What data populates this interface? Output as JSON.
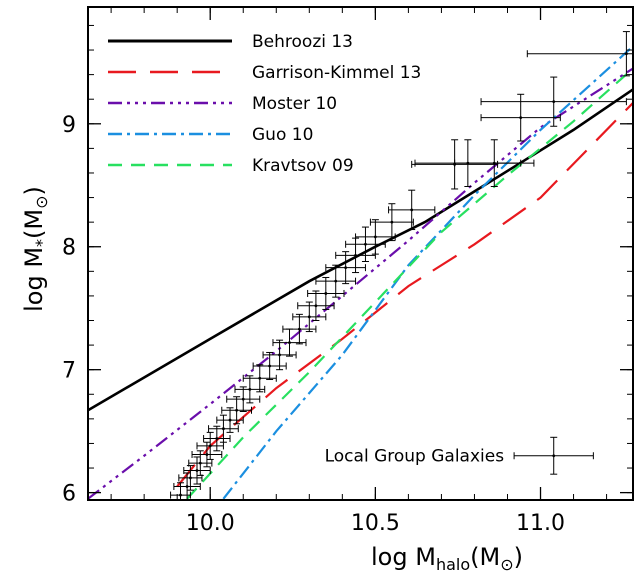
{
  "chart_data": {
    "type": "line",
    "title": "",
    "xlabel": {
      "main": "log M",
      "sub": "halo",
      "unit": "(M",
      "unit_sub": "⊙",
      "close": ")"
    },
    "ylabel": {
      "main": "log M",
      "sub": "*",
      "unit": "(M",
      "unit_sub": "⊙",
      "close": ")"
    },
    "xlim": [
      9.63,
      11.28
    ],
    "ylim": [
      5.94,
      9.95
    ],
    "xticks": [
      10.0,
      10.5,
      11.0
    ],
    "xtick_labels": [
      "10.0",
      "10.5",
      "11.0"
    ],
    "yticks": [
      6,
      7,
      8,
      9
    ],
    "ytick_labels": [
      "6",
      "7",
      "8",
      "9"
    ],
    "legend_position": "top-left",
    "series": [
      {
        "name": "Behroozi 13",
        "color": "#000000",
        "dash": "solid",
        "width": 2.6,
        "x": [
          9.63,
          10.0,
          10.3,
          10.5,
          10.65,
          10.8,
          10.95,
          11.1,
          11.28
        ],
        "y": [
          6.67,
          7.25,
          7.72,
          8.0,
          8.2,
          8.45,
          8.7,
          8.95,
          9.28
        ]
      },
      {
        "name": "Garrison-Kimmel 13",
        "color": "#e8191f",
        "dash": "28,14",
        "width": 2.2,
        "x": [
          9.9,
          10.0,
          10.2,
          10.4,
          10.6,
          10.8,
          11.0,
          11.28
        ],
        "y": [
          6.05,
          6.38,
          6.85,
          7.25,
          7.68,
          8.02,
          8.4,
          9.17
        ]
      },
      {
        "name": "Moster 10",
        "color": "#6a0eab",
        "dash": "14,5,3,5,3,5,3,5",
        "width": 2.2,
        "x": [
          9.63,
          9.8,
          10.0,
          10.2,
          10.4,
          10.6,
          10.8,
          11.0,
          11.28
        ],
        "y": [
          5.95,
          6.3,
          6.72,
          7.15,
          7.6,
          8.05,
          8.52,
          8.97,
          9.45
        ]
      },
      {
        "name": "Guo 10",
        "color": "#1b8fe0",
        "dash": "14,5,3,5",
        "width": 2.2,
        "x": [
          10.04,
          10.2,
          10.4,
          10.6,
          10.8,
          11.0,
          11.28
        ],
        "y": [
          5.95,
          6.5,
          7.12,
          7.85,
          8.42,
          8.95,
          9.63
        ]
      },
      {
        "name": "Kravtsov 09",
        "color": "#28e060",
        "dash": "14,9",
        "width": 2.2,
        "x": [
          9.93,
          10.1,
          10.3,
          10.5,
          10.7,
          10.9,
          11.1,
          11.28
        ],
        "y": [
          5.95,
          6.45,
          6.98,
          7.55,
          8.12,
          8.58,
          9.02,
          9.45
        ]
      }
    ],
    "error_points": [
      {
        "x": 9.91,
        "y": 5.98,
        "xerr": 0.03,
        "yerr": 0.1
      },
      {
        "x": 9.93,
        "y": 6.05,
        "xerr": 0.04,
        "yerr": 0.11
      },
      {
        "x": 9.94,
        "y": 6.12,
        "xerr": 0.035,
        "yerr": 0.1
      },
      {
        "x": 9.96,
        "y": 6.18,
        "xerr": 0.04,
        "yerr": 0.11
      },
      {
        "x": 9.97,
        "y": 6.24,
        "xerr": 0.035,
        "yerr": 0.1
      },
      {
        "x": 9.99,
        "y": 6.31,
        "xerr": 0.045,
        "yerr": 0.1
      },
      {
        "x": 10.0,
        "y": 6.38,
        "xerr": 0.04,
        "yerr": 0.11
      },
      {
        "x": 10.02,
        "y": 6.44,
        "xerr": 0.04,
        "yerr": 0.1
      },
      {
        "x": 10.04,
        "y": 6.52,
        "xerr": 0.045,
        "yerr": 0.11
      },
      {
        "x": 10.06,
        "y": 6.59,
        "xerr": 0.04,
        "yerr": 0.1
      },
      {
        "x": 10.08,
        "y": 6.67,
        "xerr": 0.045,
        "yerr": 0.11
      },
      {
        "x": 10.1,
        "y": 6.76,
        "xerr": 0.05,
        "yerr": 0.1
      },
      {
        "x": 10.12,
        "y": 6.84,
        "xerr": 0.045,
        "yerr": 0.11
      },
      {
        "x": 10.15,
        "y": 6.93,
        "xerr": 0.05,
        "yerr": 0.11
      },
      {
        "x": 10.18,
        "y": 7.03,
        "xerr": 0.05,
        "yerr": 0.11
      },
      {
        "x": 10.21,
        "y": 7.12,
        "xerr": 0.05,
        "yerr": 0.12
      },
      {
        "x": 10.24,
        "y": 7.22,
        "xerr": 0.05,
        "yerr": 0.11
      },
      {
        "x": 10.27,
        "y": 7.33,
        "xerr": 0.05,
        "yerr": 0.12
      },
      {
        "x": 10.3,
        "y": 7.43,
        "xerr": 0.05,
        "yerr": 0.12
      },
      {
        "x": 10.32,
        "y": 7.52,
        "xerr": 0.055,
        "yerr": 0.12
      },
      {
        "x": 10.35,
        "y": 7.62,
        "xerr": 0.055,
        "yerr": 0.13
      },
      {
        "x": 10.38,
        "y": 7.72,
        "xerr": 0.06,
        "yerr": 0.13
      },
      {
        "x": 10.41,
        "y": 7.83,
        "xerr": 0.06,
        "yerr": 0.13
      },
      {
        "x": 10.44,
        "y": 7.93,
        "xerr": 0.06,
        "yerr": 0.14
      },
      {
        "x": 10.47,
        "y": 8.02,
        "xerr": 0.06,
        "yerr": 0.14
      },
      {
        "x": 10.5,
        "y": 8.08,
        "xerr": 0.06,
        "yerr": 0.14
      },
      {
        "x": 10.55,
        "y": 8.2,
        "xerr": 0.065,
        "yerr": 0.15
      },
      {
        "x": 10.61,
        "y": 8.3,
        "xerr": 0.07,
        "yerr": 0.16
      },
      {
        "x": 10.74,
        "y": 8.67,
        "xerr": 0.13,
        "yerr": 0.2
      },
      {
        "x": 10.78,
        "y": 8.68,
        "xerr": 0.16,
        "yerr": 0.19
      },
      {
        "x": 10.86,
        "y": 8.68,
        "xerr": 0.12,
        "yerr": 0.19
      },
      {
        "x": 10.94,
        "y": 9.05,
        "xerr": 0.12,
        "yerr": 0.19
      },
      {
        "x": 11.04,
        "y": 9.18,
        "xerr": 0.22,
        "yerr": 0.2
      },
      {
        "x": 11.26,
        "y": 9.57,
        "xerr": 0.3,
        "yerr": 0.18
      }
    ],
    "annotation": {
      "text": "Local Group Galaxies",
      "x": 11.04,
      "y": 6.3,
      "xerr": 0.12,
      "yerr": 0.15
    }
  }
}
